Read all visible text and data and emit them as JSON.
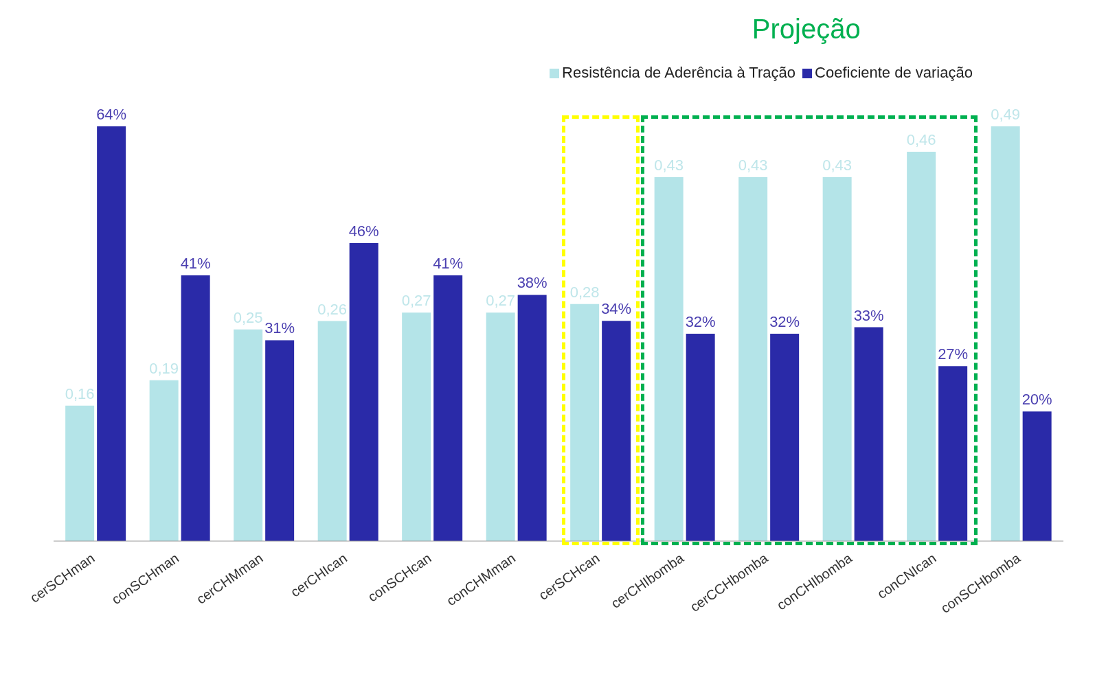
{
  "chart_data": {
    "type": "bar",
    "categories": [
      "cerSCHman",
      "conSCHman",
      "cerCHMman",
      "cerCHIcan",
      "conSCHcan",
      "conCHMman",
      "cerSCHcan",
      "cerCHIbomba",
      "cerCCHbomba",
      "conCHIbomba",
      "conCNIcan",
      "conSCHbomba"
    ],
    "series": [
      {
        "name": "Resistência de Aderência à Tração",
        "color": "#b4e4e8",
        "values": [
          0.16,
          0.19,
          0.25,
          0.26,
          0.27,
          0.27,
          0.28,
          0.43,
          0.43,
          0.43,
          0.46,
          0.49
        ],
        "value_labels": [
          "0,16",
          "0,19",
          "0,25",
          "0,26",
          "0,27",
          "0,27",
          "0,28",
          "0,43",
          "0,43",
          "0,43",
          "0,46",
          "0,49"
        ]
      },
      {
        "name": "Coeficiente de variação",
        "color": "#2a2aa8",
        "axis": "y2",
        "values": [
          64,
          41,
          31,
          46,
          41,
          38,
          34,
          32,
          32,
          33,
          27,
          20
        ],
        "value_labels": [
          "64%",
          "41%",
          "31%",
          "46%",
          "41%",
          "38%",
          "34%",
          "32%",
          "32%",
          "33%",
          "27%",
          "20%"
        ]
      }
    ],
    "annotations": [
      "Projeção"
    ],
    "legend": "top"
  }
}
